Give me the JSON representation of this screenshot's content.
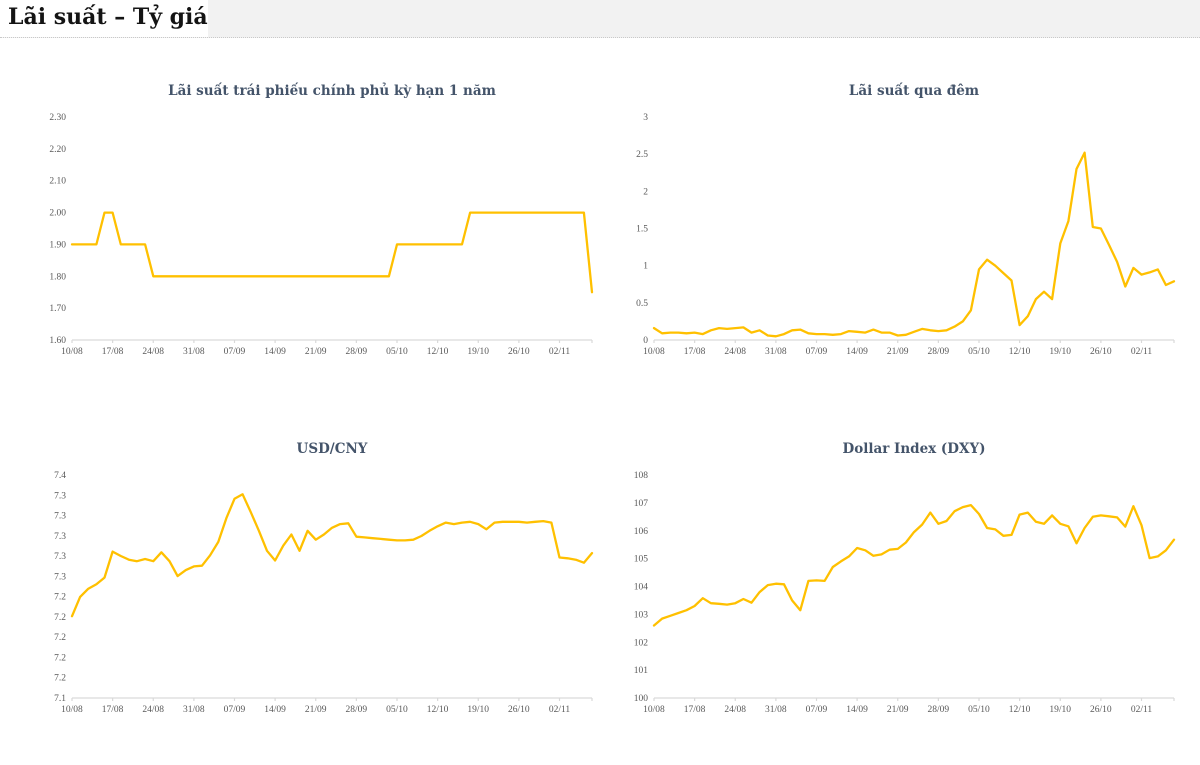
{
  "page": {
    "title": "Lãi suất – Tỷ giá"
  },
  "colors": {
    "line": "#FFC000",
    "chart_title": "#44546A",
    "tick_label": "#595959",
    "axis": "#D9D9D9",
    "header_band": "#F2F2F2"
  },
  "chart_data": [
    {
      "type": "line",
      "title": "Lãi suất trái phiếu chính phủ kỳ hạn 1 năm",
      "ymin": 1.6,
      "ymax": 2.3,
      "y_tick_labels": [
        "2.30",
        "2.20",
        "2.10",
        "2.00",
        "1.90",
        "1.80",
        "1.70",
        "1.60"
      ],
      "x_tick_labels": [
        "10/08",
        "17/08",
        "24/08",
        "31/08",
        "07/09",
        "14/09",
        "21/09",
        "28/09",
        "05/10",
        "12/10",
        "19/10",
        "26/10",
        "02/11"
      ],
      "x_tick_every": 5,
      "values": [
        1.9,
        1.9,
        1.9,
        1.9,
        2.0,
        2.0,
        1.9,
        1.9,
        1.9,
        1.9,
        1.8,
        1.8,
        1.8,
        1.8,
        1.8,
        1.8,
        1.8,
        1.8,
        1.8,
        1.8,
        1.8,
        1.8,
        1.8,
        1.8,
        1.8,
        1.8,
        1.8,
        1.8,
        1.8,
        1.8,
        1.8,
        1.8,
        1.8,
        1.8,
        1.8,
        1.8,
        1.8,
        1.8,
        1.8,
        1.8,
        1.9,
        1.9,
        1.9,
        1.9,
        1.9,
        1.9,
        1.9,
        1.9,
        1.9,
        2.0,
        2.0,
        2.0,
        2.0,
        2.0,
        2.0,
        2.0,
        2.0,
        2.0,
        2.0,
        2.0,
        2.0,
        2.0,
        2.0,
        2.0,
        1.75
      ]
    },
    {
      "type": "line",
      "title": "Lãi suất qua đêm",
      "ymin": 0,
      "ymax": 3,
      "y_tick_labels": [
        "3",
        "2.5",
        "2",
        "1.5",
        "1",
        "0.5",
        "0"
      ],
      "x_tick_labels": [
        "10/08",
        "17/08",
        "24/08",
        "31/08",
        "07/09",
        "14/09",
        "21/09",
        "28/09",
        "05/10",
        "12/10",
        "19/10",
        "26/10",
        "02/11"
      ],
      "x_tick_every": 5,
      "values": [
        0.16,
        0.09,
        0.1,
        0.1,
        0.09,
        0.1,
        0.08,
        0.13,
        0.16,
        0.15,
        0.16,
        0.17,
        0.1,
        0.13,
        0.06,
        0.05,
        0.08,
        0.13,
        0.14,
        0.09,
        0.08,
        0.08,
        0.07,
        0.08,
        0.12,
        0.11,
        0.1,
        0.14,
        0.1,
        0.1,
        0.06,
        0.07,
        0.11,
        0.15,
        0.13,
        0.12,
        0.13,
        0.18,
        0.25,
        0.4,
        0.95,
        1.08,
        1.0,
        0.9,
        0.8,
        0.2,
        0.32,
        0.55,
        0.65,
        0.55,
        1.3,
        1.6,
        2.3,
        2.52,
        1.52,
        1.5,
        1.28,
        1.05,
        0.72,
        0.97,
        0.88,
        0.91,
        0.95,
        0.74,
        0.79
      ]
    },
    {
      "type": "line",
      "title": "USD/CNY",
      "ymin": 7.1,
      "ymax": 7.4,
      "y_tick_labels": [
        "7.4",
        "7.3",
        "7.3",
        "7.3",
        "7.3",
        "7.3",
        "7.2",
        "7.2",
        "7.2",
        "7.2",
        "7.2",
        "7.1"
      ],
      "x_tick_labels": [
        "10/08",
        "17/08",
        "24/08",
        "31/08",
        "07/09",
        "14/09",
        "21/09",
        "28/09",
        "05/10",
        "12/10",
        "19/10",
        "26/10",
        "02/11"
      ],
      "x_tick_every": 5,
      "values": [
        7.21,
        7.236,
        7.247,
        7.253,
        7.262,
        7.297,
        7.291,
        7.286,
        7.284,
        7.287,
        7.284,
        7.296,
        7.284,
        7.264,
        7.272,
        7.277,
        7.278,
        7.292,
        7.31,
        7.342,
        7.368,
        7.374,
        7.35,
        7.325,
        7.298,
        7.285,
        7.305,
        7.32,
        7.298,
        7.325,
        7.313,
        7.32,
        7.329,
        7.334,
        7.335,
        7.317,
        7.316,
        7.315,
        7.314,
        7.313,
        7.312,
        7.312,
        7.313,
        7.318,
        7.325,
        7.331,
        7.336,
        7.334,
        7.336,
        7.337,
        7.334,
        7.327,
        7.336,
        7.337,
        7.337,
        7.337,
        7.336,
        7.337,
        7.338,
        7.336,
        7.289,
        7.288,
        7.286,
        7.282,
        7.295
      ]
    },
    {
      "type": "line",
      "title": "Dollar Index (DXY)",
      "ymin": 100,
      "ymax": 108,
      "y_tick_labels": [
        "108",
        "107",
        "106",
        "105",
        "104",
        "103",
        "102",
        "101",
        "100"
      ],
      "x_tick_labels": [
        "10/08",
        "17/08",
        "24/08",
        "31/08",
        "07/09",
        "14/09",
        "21/09",
        "28/09",
        "05/10",
        "12/10",
        "19/10",
        "26/10",
        "02/11"
      ],
      "x_tick_every": 5,
      "values": [
        102.6,
        102.85,
        102.95,
        103.05,
        103.15,
        103.3,
        103.58,
        103.4,
        103.38,
        103.35,
        103.4,
        103.55,
        103.42,
        103.8,
        104.05,
        104.1,
        104.08,
        103.5,
        103.15,
        104.2,
        104.22,
        104.2,
        104.7,
        104.9,
        105.08,
        105.38,
        105.3,
        105.1,
        105.15,
        105.32,
        105.35,
        105.58,
        105.95,
        106.22,
        106.65,
        106.25,
        106.35,
        106.7,
        106.85,
        106.92,
        106.6,
        106.1,
        106.05,
        105.82,
        105.85,
        106.58,
        106.65,
        106.32,
        106.25,
        106.55,
        106.25,
        106.16,
        105.55,
        106.1,
        106.5,
        106.55,
        106.52,
        106.48,
        106.15,
        106.88,
        106.2,
        105.02,
        105.08,
        105.3,
        105.68
      ]
    }
  ]
}
